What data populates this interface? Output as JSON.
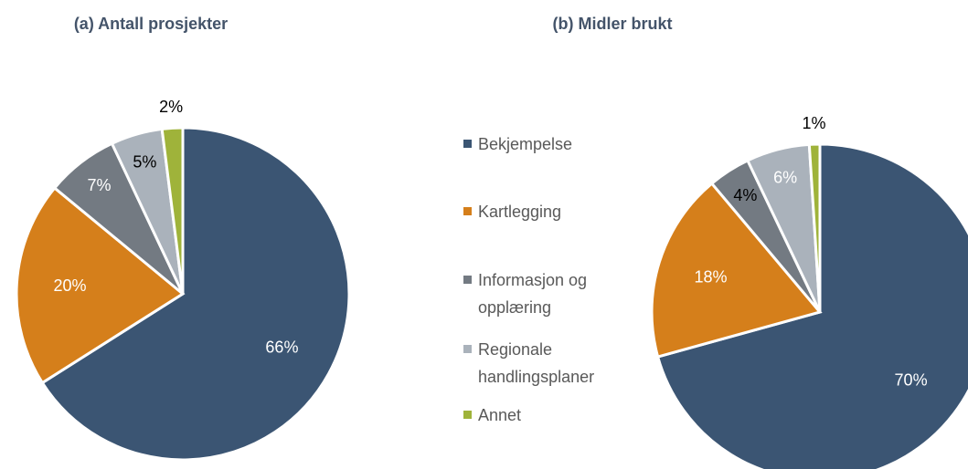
{
  "chart_data": [
    {
      "type": "pie",
      "title": "(a) Antall prosjekter",
      "values": [
        66,
        20,
        7,
        5,
        2
      ],
      "value_labels": [
        "66%",
        "20%",
        "7%",
        "5%",
        "2%"
      ]
    },
    {
      "type": "pie",
      "title": "(b) Midler brukt",
      "values": [
        70,
        18,
        4,
        6,
        1
      ],
      "value_labels": [
        "70%",
        "18%",
        "4%",
        "6%",
        "1%"
      ]
    }
  ],
  "legend": {
    "labels": [
      "Bekjempelse",
      "Kartlegging",
      "Informasjon og opplæring",
      "Regionale handlingsplaner",
      "Annet"
    ],
    "colors": [
      "#3b5573",
      "#d57f1b",
      "#737a82",
      "#aab2bb",
      "#9fb33a"
    ]
  }
}
